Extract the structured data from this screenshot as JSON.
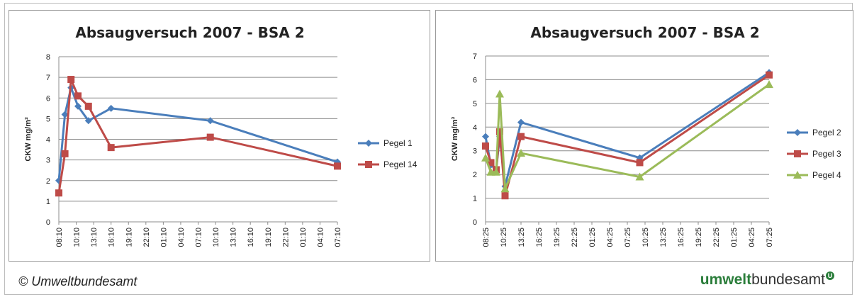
{
  "chart_data": [
    {
      "type": "line",
      "title": "Absaugversuch 2007 - BSA 2",
      "ylabel": "CKW mg/m³",
      "ylim": [
        0,
        8
      ],
      "yticks": [
        0,
        1,
        2,
        3,
        4,
        5,
        6,
        7,
        8
      ],
      "xticks": [
        "08:10",
        "10:10",
        "13:10",
        "16:10",
        "19:10",
        "22:10",
        "01:10",
        "04:10",
        "07:10",
        "10:10",
        "13:10",
        "16:10",
        "19:10",
        "22:10",
        "01:10",
        "04:10",
        "07:10"
      ],
      "legend_position": "right",
      "series": [
        {
          "name": "Pegel 1",
          "color": "#4a7ebb",
          "marker": "diamond",
          "points": [
            [
              0,
              2.0
            ],
            [
              0.35,
              5.2
            ],
            [
              0.7,
              6.5
            ],
            [
              1.1,
              5.6
            ],
            [
              1.7,
              4.9
            ],
            [
              3.0,
              5.5
            ],
            [
              8.7,
              4.9
            ],
            [
              16.0,
              2.9
            ]
          ]
        },
        {
          "name": "Pegel 14",
          "color": "#be4b48",
          "marker": "square",
          "points": [
            [
              0,
              1.4
            ],
            [
              0.35,
              3.3
            ],
            [
              0.7,
              6.9
            ],
            [
              1.1,
              6.1
            ],
            [
              1.7,
              5.6
            ],
            [
              3.0,
              3.6
            ],
            [
              8.7,
              4.1
            ],
            [
              16.0,
              2.7
            ]
          ]
        }
      ]
    },
    {
      "type": "line",
      "title": "Absaugversuch 2007 - BSA 2",
      "ylabel": "CKW mg/m³",
      "ylim": [
        0,
        7
      ],
      "yticks": [
        0,
        1,
        2,
        3,
        4,
        5,
        6,
        7
      ],
      "xticks": [
        "08:25",
        "10:25",
        "13:25",
        "16:25",
        "19:25",
        "22:25",
        "01:25",
        "04:25",
        "07:25",
        "10:25",
        "13:25",
        "16:25",
        "19:25",
        "22:25",
        "01:25",
        "04:25",
        "07:25"
      ],
      "legend_position": "right",
      "series": [
        {
          "name": "Pegel 2",
          "color": "#4a7ebb",
          "marker": "diamond",
          "points": [
            [
              0,
              3.6
            ],
            [
              0.3,
              2.4
            ],
            [
              0.6,
              2.2
            ],
            [
              0.8,
              3.6
            ],
            [
              1.1,
              1.5
            ],
            [
              2.0,
              4.2
            ],
            [
              8.7,
              2.7
            ],
            [
              16.0,
              6.3
            ]
          ]
        },
        {
          "name": "Pegel 3",
          "color": "#be4b48",
          "marker": "square",
          "points": [
            [
              0,
              3.2
            ],
            [
              0.3,
              2.5
            ],
            [
              0.6,
              2.2
            ],
            [
              0.8,
              3.8
            ],
            [
              1.1,
              1.1
            ],
            [
              2.0,
              3.6
            ],
            [
              8.7,
              2.5
            ],
            [
              16.0,
              6.2
            ]
          ]
        },
        {
          "name": "Pegel 4",
          "color": "#9bbb59",
          "marker": "triangle",
          "points": [
            [
              0,
              2.7
            ],
            [
              0.3,
              2.1
            ],
            [
              0.6,
              2.1
            ],
            [
              0.8,
              5.4
            ],
            [
              1.1,
              1.4
            ],
            [
              2.0,
              2.9
            ],
            [
              8.7,
              1.9
            ],
            [
              16.0,
              5.8
            ]
          ]
        }
      ]
    }
  ],
  "footer": {
    "copyright": "© Umweltbundesamt",
    "logo_bold": "umwelt",
    "logo_rest": "bundesamt",
    "logo_mark": "U"
  }
}
